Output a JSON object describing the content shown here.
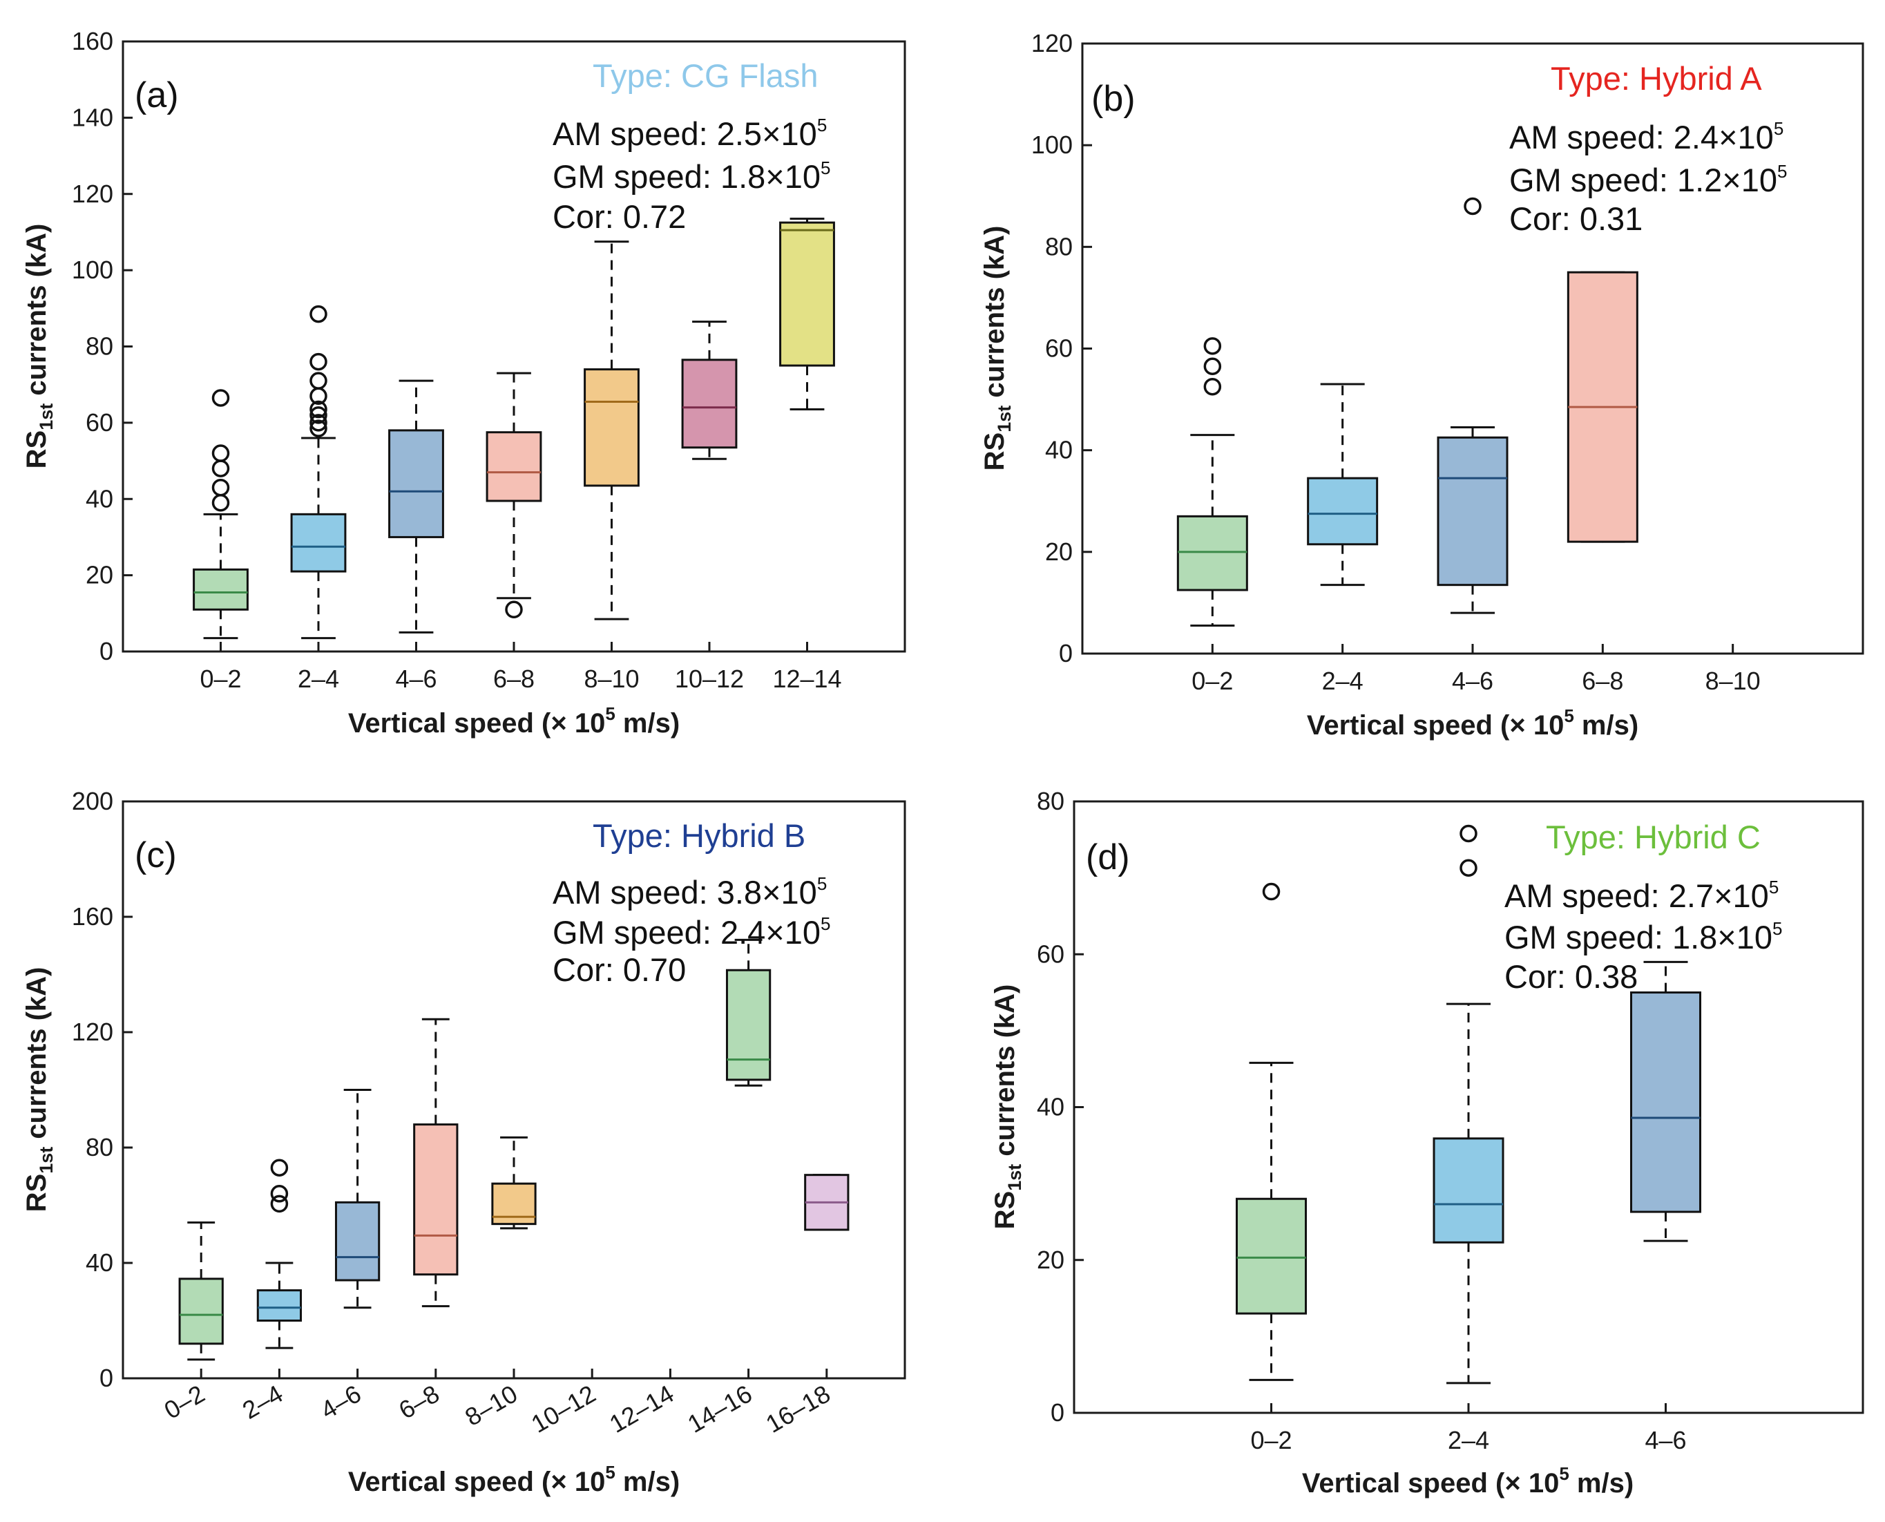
{
  "figure": {
    "axis_text_color": "#1a1a1a"
  },
  "chart_data": [
    {
      "panel": "(a)",
      "type": "box",
      "type_label": "Type: CG Flash",
      "type_label_color": "#8ec8ea",
      "am_speed": {
        "prefix": "AM speed: ",
        "mantissa": "2.5",
        "times": "×10",
        "exp": "5"
      },
      "gm_speed": {
        "prefix": "GM speed: ",
        "mantissa": "1.8",
        "times": "×10",
        "exp": "5"
      },
      "cor": "Cor: 0.72",
      "ylabel": {
        "main": "RS",
        "sub": "1st",
        "rest": " currents (kA)"
      },
      "xlabel": {
        "main": "Vertical speed (",
        "times": "×",
        "base": " 10",
        "exp": "5",
        "rest": " m/s)"
      },
      "ylim": [
        0,
        160
      ],
      "yticks": [
        0,
        20,
        40,
        60,
        80,
        100,
        120,
        140,
        160
      ],
      "categories": [
        "0–2",
        "2–4",
        "4–6",
        "6–8",
        "8–10",
        "10–12",
        "12–14"
      ],
      "rotate_xticks": false,
      "boxes": [
        {
          "category": "0–2",
          "q1": 11,
          "median": 15.5,
          "q3": 21.5,
          "whisker_low": 3.5,
          "whisker_high": 36,
          "outliers": [
            39,
            43,
            48,
            52,
            66.5
          ],
          "fill": "#b2dbb5",
          "median_color": "#3a8a48"
        },
        {
          "category": "2–4",
          "q1": 21,
          "median": 27.5,
          "q3": 36,
          "whisker_low": 3.5,
          "whisker_high": 56,
          "outliers": [
            58.5,
            60,
            62,
            63.5,
            67,
            71,
            76,
            88.5
          ],
          "fill": "#8fcae6",
          "median_color": "#1f5f86"
        },
        {
          "category": "4–6",
          "q1": 30,
          "median": 42,
          "q3": 58,
          "whisker_low": 5,
          "whisker_high": 71,
          "outliers": [],
          "fill": "#98b8d6",
          "median_color": "#1e4a78"
        },
        {
          "category": "6–8",
          "q1": 39.5,
          "median": 47,
          "q3": 57.5,
          "whisker_low": 14,
          "whisker_high": 73,
          "outliers": [
            11
          ],
          "fill": "#f5c0b5",
          "median_color": "#b05a45"
        },
        {
          "category": "8–10",
          "q1": 43.5,
          "median": 65.5,
          "q3": 74,
          "whisker_low": 8.5,
          "whisker_high": 107.5,
          "outliers": [],
          "fill": "#f2c98a",
          "median_color": "#a06a1a"
        },
        {
          "category": "10–12",
          "q1": 53.5,
          "median": 64,
          "q3": 76.5,
          "whisker_low": 50.5,
          "whisker_high": 86.5,
          "outliers": [],
          "fill": "#d595ad",
          "median_color": "#7a2a4a"
        },
        {
          "category": "12–14",
          "q1": 75,
          "median": 110.5,
          "q3": 112.5,
          "whisker_low": 63.5,
          "whisker_high": 113.5,
          "outliers": [],
          "fill": "#e3e186",
          "median_color": "#6a6a1a"
        }
      ]
    },
    {
      "panel": "(b)",
      "type": "box",
      "type_label": "Type: Hybrid A",
      "type_label_color": "#e52520",
      "am_speed": {
        "prefix": "AM speed: ",
        "mantissa": "2.4",
        "times": "×10",
        "exp": "5"
      },
      "gm_speed": {
        "prefix": "GM speed: ",
        "mantissa": "1.2",
        "times": "×10",
        "exp": "5"
      },
      "cor": "Cor: 0.31",
      "ylabel": {
        "main": "RS",
        "sub": "1st",
        "rest": " currents (kA)"
      },
      "xlabel": {
        "main": "Vertical speed (",
        "times": "×",
        "base": " 10",
        "exp": "5",
        "rest": " m/s)"
      },
      "ylim": [
        0,
        120
      ],
      "yticks": [
        0,
        20,
        40,
        60,
        80,
        100,
        120
      ],
      "categories": [
        "0–2",
        "2–4",
        "4–6",
        "6–8",
        "8–10"
      ],
      "rotate_xticks": false,
      "boxes": [
        {
          "category": "0–2",
          "q1": 12.5,
          "median": 20,
          "q3": 27,
          "whisker_low": 5.5,
          "whisker_high": 43,
          "outliers": [
            52.5,
            56.5,
            60.5
          ],
          "fill": "#b2dbb5",
          "median_color": "#3a8a48"
        },
        {
          "category": "2–4",
          "q1": 21.5,
          "median": 27.5,
          "q3": 34.5,
          "whisker_low": 13.5,
          "whisker_high": 53,
          "outliers": [],
          "fill": "#8fcae6",
          "median_color": "#1f5f86"
        },
        {
          "category": "4–6",
          "q1": 13.5,
          "median": 34.5,
          "q3": 42.5,
          "whisker_low": 8,
          "whisker_high": 44.5,
          "outliers": [
            88
          ],
          "fill": "#98b8d6",
          "median_color": "#1e4a78"
        },
        {
          "category": "6–8",
          "q1": 22,
          "median": 48.5,
          "q3": 75,
          "whisker_low": 22,
          "whisker_high": 75,
          "outliers": [],
          "fill": "#f5c0b5",
          "median_color": "#b05a45"
        }
      ]
    },
    {
      "panel": "(c)",
      "type": "box",
      "type_label": "Type: Hybrid B",
      "type_label_color": "#1f3f93",
      "am_speed": {
        "prefix": "AM speed: ",
        "mantissa": "3.8",
        "times": "×10",
        "exp": "5"
      },
      "gm_speed": {
        "prefix": "GM speed: ",
        "mantissa": "2.4",
        "times": "×10",
        "exp": "5"
      },
      "cor": "Cor: 0.70",
      "ylabel": {
        "main": "RS",
        "sub": "1st",
        "rest": " currents (kA)"
      },
      "xlabel": {
        "main": "Vertical speed (",
        "times": "×",
        "base": " 10",
        "exp": "5",
        "rest": " m/s)"
      },
      "ylim": [
        0,
        200
      ],
      "yticks": [
        0,
        40,
        80,
        120,
        160,
        200
      ],
      "categories": [
        "0–2",
        "2–4",
        "4–6",
        "6–8",
        "8–10",
        "10–12",
        "12–14",
        "14–16",
        "16–18"
      ],
      "rotate_xticks": true,
      "boxes": [
        {
          "category": "0–2",
          "q1": 12,
          "median": 22,
          "q3": 34.5,
          "whisker_low": 6.5,
          "whisker_high": 54,
          "outliers": [],
          "fill": "#b2dbb5",
          "median_color": "#3a8a48"
        },
        {
          "category": "2–4",
          "q1": 20,
          "median": 24.5,
          "q3": 30.5,
          "whisker_low": 10.5,
          "whisker_high": 40,
          "outliers": [
            60.5,
            64,
            73
          ],
          "fill": "#8fcae6",
          "median_color": "#1f5f86"
        },
        {
          "category": "4–6",
          "q1": 34,
          "median": 42,
          "q3": 61,
          "whisker_low": 24.5,
          "whisker_high": 100,
          "outliers": [],
          "fill": "#98b8d6",
          "median_color": "#1e4a78"
        },
        {
          "category": "6–8",
          "q1": 36,
          "median": 49.5,
          "q3": 88,
          "whisker_low": 25,
          "whisker_high": 124.5,
          "outliers": [],
          "fill": "#f5c0b5",
          "median_color": "#b05a45"
        },
        {
          "category": "8–10",
          "q1": 53.5,
          "median": 56,
          "q3": 67.5,
          "whisker_low": 52,
          "whisker_high": 83.5,
          "outliers": [],
          "fill": "#f2c98a",
          "median_color": "#a06a1a"
        },
        {
          "category": "14–16",
          "q1": 103.5,
          "median": 110.5,
          "q3": 141.5,
          "whisker_low": 101.5,
          "whisker_high": 152,
          "outliers": [],
          "fill": "#b2dbb5",
          "median_color": "#3a8a48"
        },
        {
          "category": "16–18",
          "q1": 51.5,
          "median": 61,
          "q3": 70.5,
          "whisker_low": 51.5,
          "whisker_high": 70.5,
          "outliers": [],
          "fill": "#e2c6e2",
          "median_color": "#8a5a8a"
        }
      ]
    },
    {
      "panel": "(d)",
      "type": "box",
      "type_label": "Type: Hybrid C",
      "type_label_color": "#6cbf3c",
      "am_speed": {
        "prefix": "AM speed: ",
        "mantissa": "2.7",
        "times": "×10",
        "exp": "5"
      },
      "gm_speed": {
        "prefix": "GM speed: ",
        "mantissa": "1.8",
        "times": "×10",
        "exp": "5"
      },
      "cor": "Cor: 0.38",
      "ylabel": {
        "main": "RS",
        "sub": "1st",
        "rest": " currents (kA)"
      },
      "xlabel": {
        "main": "Vertical speed (",
        "times": "×",
        "base": " 10",
        "exp": "5",
        "rest": " m/s)"
      },
      "ylim": [
        0,
        80
      ],
      "yticks": [
        0,
        20,
        40,
        60,
        80
      ],
      "categories": [
        "0–2",
        "2–4",
        "4–6"
      ],
      "rotate_xticks": false,
      "boxes": [
        {
          "category": "0–2",
          "q1": 13,
          "median": 20.3,
          "q3": 28,
          "whisker_low": 4.3,
          "whisker_high": 45.8,
          "outliers": [
            68.2
          ],
          "fill": "#b2dbb5",
          "median_color": "#3a8a48"
        },
        {
          "category": "2–4",
          "q1": 22.3,
          "median": 27.3,
          "q3": 35.9,
          "whisker_low": 3.9,
          "whisker_high": 53.5,
          "outliers": [
            71.3,
            75.8
          ],
          "fill": "#8fcae6",
          "median_color": "#1f5f86"
        },
        {
          "category": "4–6",
          "q1": 26.3,
          "median": 38.6,
          "q3": 55,
          "whisker_low": 22.5,
          "whisker_high": 59,
          "outliers": [],
          "fill": "#98b8d6",
          "median_color": "#1e4a78"
        }
      ]
    }
  ]
}
